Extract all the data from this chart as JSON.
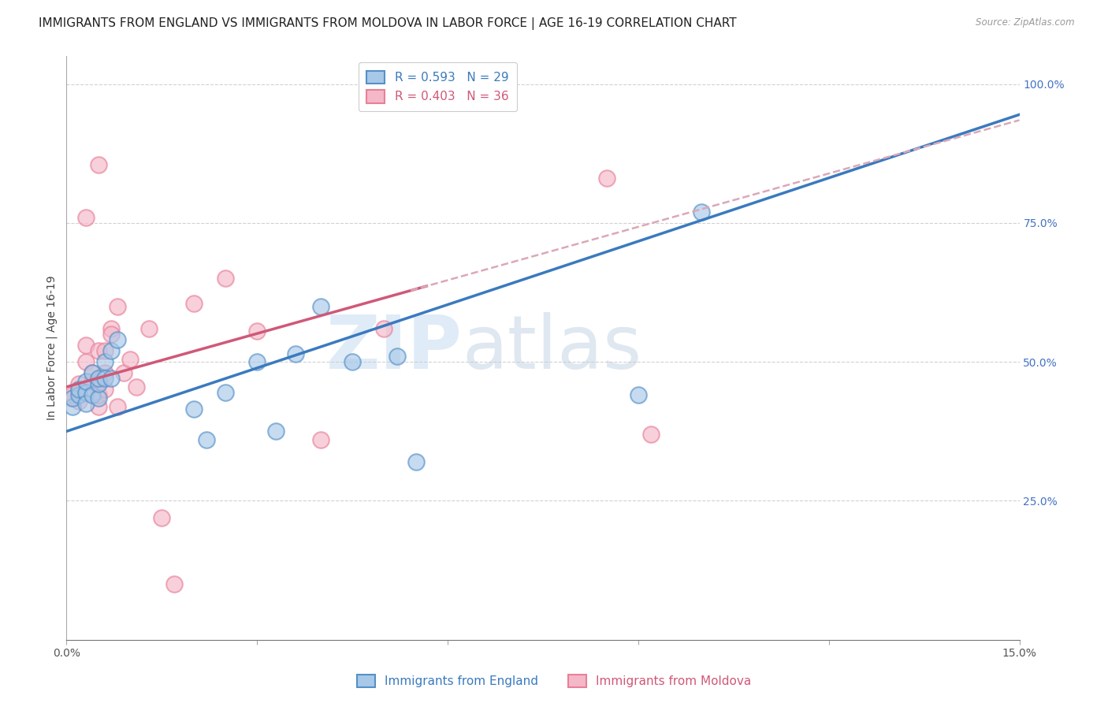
{
  "title": "IMMIGRANTS FROM ENGLAND VS IMMIGRANTS FROM MOLDOVA IN LABOR FORCE | AGE 16-19 CORRELATION CHART",
  "source": "Source: ZipAtlas.com",
  "ylabel": "In Labor Force | Age 16-19",
  "xlim": [
    0.0,
    0.15
  ],
  "ylim": [
    0.0,
    1.05
  ],
  "england_color_fill": "#a8c8e8",
  "england_color_edge": "#5590c8",
  "england_line_color": "#3a7abf",
  "moldova_color_fill": "#f4b8c8",
  "moldova_color_edge": "#e88099",
  "moldova_line_color": "#d05878",
  "moldova_dash_color": "#dba8b8",
  "england_R": 0.593,
  "england_N": 29,
  "moldova_R": 0.403,
  "moldova_N": 36,
  "england_intercept": 0.375,
  "england_slope": 3.8,
  "moldova_intercept": 0.455,
  "moldova_slope": 3.2,
  "england_x": [
    0.001,
    0.001,
    0.002,
    0.002,
    0.003,
    0.003,
    0.003,
    0.004,
    0.004,
    0.005,
    0.005,
    0.005,
    0.006,
    0.006,
    0.007,
    0.007,
    0.008,
    0.02,
    0.022,
    0.025,
    0.03,
    0.033,
    0.036,
    0.04,
    0.045,
    0.052,
    0.055,
    0.09,
    0.1
  ],
  "england_y": [
    0.42,
    0.435,
    0.44,
    0.45,
    0.445,
    0.465,
    0.425,
    0.44,
    0.48,
    0.435,
    0.46,
    0.47,
    0.5,
    0.47,
    0.52,
    0.47,
    0.54,
    0.415,
    0.36,
    0.445,
    0.5,
    0.375,
    0.515,
    0.6,
    0.5,
    0.51,
    0.32,
    0.44,
    0.77
  ],
  "moldova_x": [
    0.001,
    0.001,
    0.002,
    0.002,
    0.002,
    0.003,
    0.003,
    0.003,
    0.004,
    0.004,
    0.005,
    0.005,
    0.005,
    0.005,
    0.006,
    0.006,
    0.007,
    0.007,
    0.008,
    0.008,
    0.009,
    0.01,
    0.011,
    0.013,
    0.015,
    0.017,
    0.02,
    0.025,
    0.03,
    0.04,
    0.05,
    0.085,
    0.092,
    0.003,
    0.005,
    0.006
  ],
  "moldova_y": [
    0.435,
    0.44,
    0.45,
    0.46,
    0.43,
    0.45,
    0.5,
    0.53,
    0.465,
    0.48,
    0.42,
    0.44,
    0.465,
    0.52,
    0.52,
    0.48,
    0.56,
    0.55,
    0.6,
    0.42,
    0.48,
    0.505,
    0.455,
    0.56,
    0.22,
    0.1,
    0.605,
    0.65,
    0.555,
    0.36,
    0.56,
    0.83,
    0.37,
    0.76,
    0.855,
    0.45
  ],
  "background_color": "#ffffff",
  "grid_color": "#cccccc",
  "title_fontsize": 11,
  "axis_label_fontsize": 10,
  "tick_fontsize": 10,
  "legend_fontsize": 11,
  "watermark_zip": "ZIP",
  "watermark_atlas": "atlas",
  "watermark_zip_color": "#b8d4ee",
  "watermark_atlas_color": "#b8cce0",
  "right_ytick_color": "#4472c4",
  "legend_text_color_eng": "#3a7abf",
  "legend_text_color_mol": "#d05878"
}
